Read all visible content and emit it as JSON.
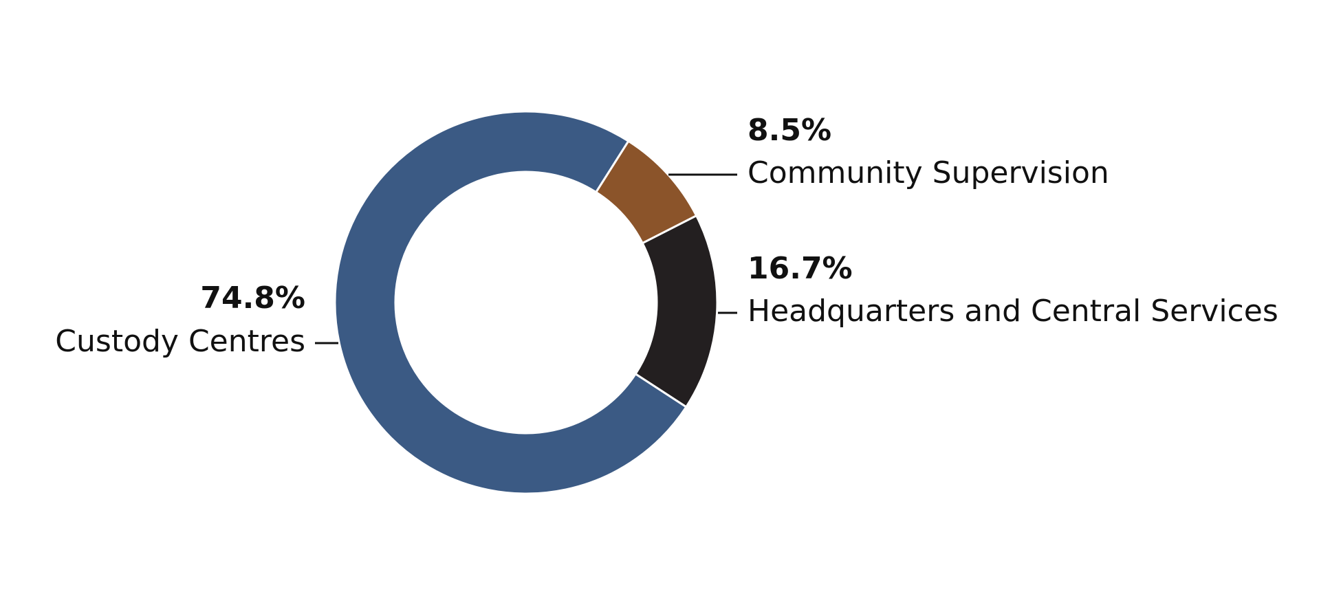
{
  "chart_data": {
    "type": "donut",
    "categories": [
      "Custody Centres",
      "Community Supervision",
      "Headquarters and Central Services"
    ],
    "values": [
      74.8,
      8.5,
      16.7
    ],
    "value_labels": [
      "74.8%",
      "8.5%",
      "16.7%"
    ],
    "colors": [
      "#3b5a84",
      "#8b542a",
      "#231f20"
    ]
  }
}
